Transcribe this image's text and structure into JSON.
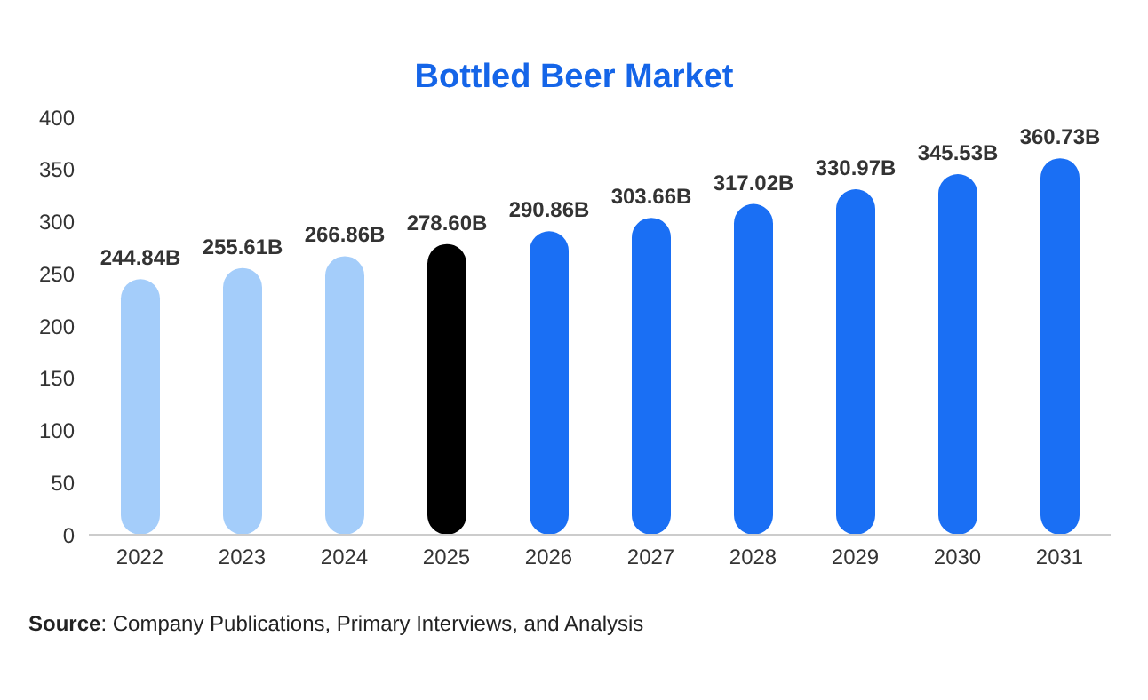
{
  "chart_data": {
    "type": "bar",
    "title": "Bottled Beer Market",
    "categories": [
      "2022",
      "2023",
      "2024",
      "2025",
      "2026",
      "2027",
      "2028",
      "2029",
      "2030",
      "2031"
    ],
    "values": [
      244.84,
      255.61,
      266.86,
      278.6,
      290.86,
      303.66,
      317.02,
      330.97,
      345.53,
      360.73
    ],
    "value_labels": [
      "244.84B",
      "255.61B",
      "266.86B",
      "278.60B",
      "290.86B",
      "303.66B",
      "317.02B",
      "330.97B",
      "345.53B",
      "360.73B"
    ],
    "colors": [
      "#a4cdfa",
      "#a4cdfa",
      "#a4cdfa",
      "#000000",
      "#1a6ff4",
      "#1a6ff4",
      "#1a6ff4",
      "#1a6ff4",
      "#1a6ff4",
      "#1a6ff4"
    ],
    "ylim": [
      0,
      400
    ],
    "yticks": [
      0,
      50,
      100,
      150,
      200,
      250,
      300,
      350,
      400
    ],
    "grid": false,
    "annotations": [
      "Source: Company Publications, Primary Interviews, and Analysis"
    ]
  }
}
